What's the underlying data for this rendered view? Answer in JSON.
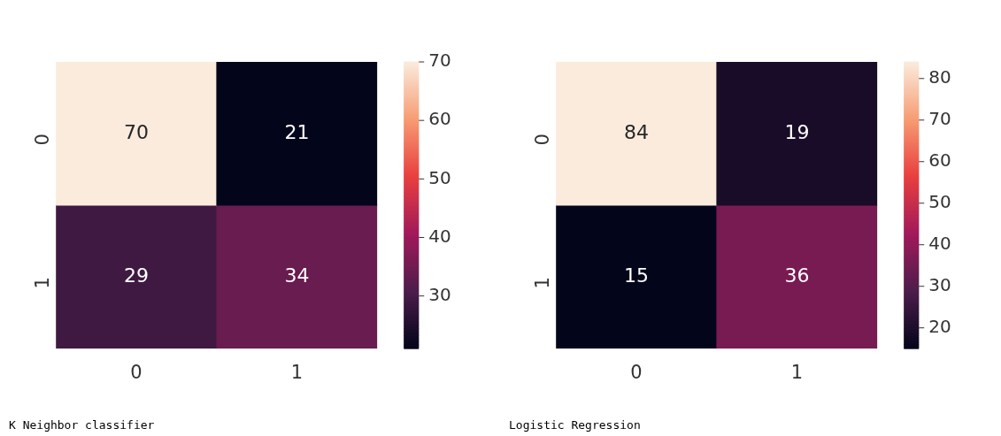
{
  "chart_data": [
    {
      "type": "heatmap",
      "title": "K Neighbor classifier",
      "categories": [
        "0",
        "1"
      ],
      "y_categories": [
        "0",
        "1"
      ],
      "cells": [
        [
          70,
          21
        ],
        [
          29,
          34
        ]
      ],
      "clim": [
        21,
        70
      ],
      "cticks": [
        30,
        40,
        50,
        60,
        70
      ],
      "data_labels": true
    },
    {
      "type": "heatmap",
      "title": "Logistic Regression",
      "categories": [
        "0",
        "1"
      ],
      "y_categories": [
        "0",
        "1"
      ],
      "cells": [
        [
          84,
          19
        ],
        [
          15,
          36
        ]
      ],
      "clim": [
        15,
        84
      ],
      "cticks": [
        20,
        30,
        40,
        50,
        60,
        70,
        80
      ],
      "data_labels": true
    }
  ]
}
